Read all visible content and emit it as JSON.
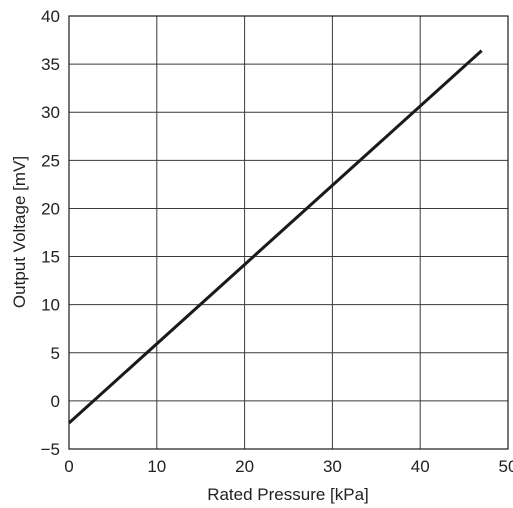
{
  "chart_data": {
    "type": "line",
    "title": "",
    "xlabel": "Rated Pressure [kPa]",
    "ylabel": "Output Voltage [mV]",
    "xlim": [
      0,
      50
    ],
    "ylim": [
      -5,
      40
    ],
    "x_ticks": [
      0,
      10,
      20,
      30,
      40,
      50
    ],
    "y_ticks": [
      -5,
      0,
      5,
      10,
      15,
      20,
      25,
      30,
      35,
      40
    ],
    "x_tick_labels": [
      "0",
      "10",
      "20",
      "30",
      "40",
      "50"
    ],
    "y_tick_labels": [
      "−5",
      "0",
      "5",
      "10",
      "15",
      "20",
      "25",
      "30",
      "35",
      "40"
    ],
    "grid": true,
    "legend": "none",
    "series": [
      {
        "x": [
          0,
          47
        ],
        "y": [
          -2.3,
          36.4
        ],
        "color": "#1a1a1a"
      }
    ]
  }
}
